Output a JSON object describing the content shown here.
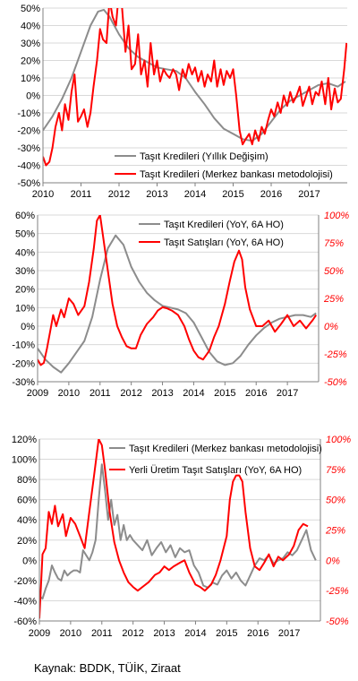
{
  "colors": {
    "gray": "#8c8c8c",
    "red": "#ff0000",
    "grid": "#d9d9d9",
    "axis": "#808080"
  },
  "source_text": "Kaynak: BDDK, TÜİK, Ziraat",
  "chart_data": [
    {
      "type": "line",
      "x_ticks": [
        "2010",
        "2011",
        "2012",
        "2013",
        "2014",
        "2015",
        "2016",
        "2017"
      ],
      "xlim": [
        2010,
        2018
      ],
      "ylim": [
        -50,
        50
      ],
      "y_ticks": [
        "50%",
        "40%",
        "30%",
        "20%",
        "10%",
        "0%",
        "-10%",
        "-20%",
        "-30%",
        "-40%",
        "-50%"
      ],
      "y_tick_values": [
        50,
        40,
        30,
        20,
        10,
        0,
        -10,
        -20,
        -30,
        -40,
        -50
      ],
      "legend_position": "bottom-left",
      "series": [
        {
          "name": "Taşıt Kredileri (Yıllık Değişim)",
          "color": "gray",
          "axis": "left",
          "x": [
            2010.0,
            2010.25,
            2010.5,
            2010.75,
            2011.0,
            2011.25,
            2011.45,
            2011.6,
            2011.75,
            2012.0,
            2012.25,
            2012.5,
            2012.75,
            2013.0,
            2013.25,
            2013.5,
            2013.75,
            2014.0,
            2014.25,
            2014.5,
            2014.75,
            2015.0,
            2015.25,
            2015.5,
            2015.75,
            2016.0,
            2016.25,
            2016.5,
            2016.75,
            2017.0,
            2017.25,
            2017.5,
            2017.75,
            2017.95
          ],
          "y": [
            -20,
            -12,
            -2,
            10,
            25,
            40,
            48,
            49,
            45,
            35,
            27,
            22,
            19,
            16,
            15,
            14,
            10,
            2,
            -5,
            -13,
            -19,
            -22,
            -25,
            -26,
            -22,
            -15,
            -8,
            -3,
            0,
            3,
            6,
            7,
            5,
            8
          ]
        },
        {
          "name": "Taşıt  Kredileri (Merkez bankası metodolojisi)",
          "color": "red",
          "axis": "left",
          "x": [
            2010.0,
            2010.08,
            2010.17,
            2010.25,
            2010.33,
            2010.42,
            2010.5,
            2010.58,
            2010.67,
            2010.75,
            2010.83,
            2010.92,
            2011.0,
            2011.08,
            2011.17,
            2011.25,
            2011.33,
            2011.42,
            2011.5,
            2011.58,
            2011.67,
            2011.75,
            2011.83,
            2011.92,
            2012.0,
            2012.08,
            2012.17,
            2012.25,
            2012.33,
            2012.42,
            2012.5,
            2012.58,
            2012.67,
            2012.75,
            2012.83,
            2012.92,
            2013.0,
            2013.08,
            2013.17,
            2013.25,
            2013.33,
            2013.42,
            2013.5,
            2013.58,
            2013.67,
            2013.75,
            2013.83,
            2013.92,
            2014.0,
            2014.08,
            2014.17,
            2014.25,
            2014.33,
            2014.42,
            2014.5,
            2014.58,
            2014.67,
            2014.75,
            2014.83,
            2014.92,
            2015.0,
            2015.08,
            2015.17,
            2015.25,
            2015.33,
            2015.42,
            2015.5,
            2015.58,
            2015.67,
            2015.75,
            2015.83,
            2015.92,
            2016.0,
            2016.08,
            2016.17,
            2016.25,
            2016.33,
            2016.42,
            2016.5,
            2016.58,
            2016.67,
            2016.75,
            2016.83,
            2016.92,
            2017.0,
            2017.08,
            2017.17,
            2017.25,
            2017.33,
            2017.42,
            2017.5,
            2017.58,
            2017.67,
            2017.75,
            2017.83,
            2017.92,
            2017.98
          ],
          "y": [
            -35,
            -40,
            -38,
            -30,
            -18,
            -10,
            -20,
            -5,
            -14,
            2,
            12,
            -15,
            -12,
            -8,
            -18,
            -10,
            5,
            20,
            38,
            32,
            30,
            55,
            45,
            40,
            60,
            50,
            25,
            40,
            15,
            18,
            35,
            12,
            20,
            5,
            30,
            12,
            20,
            8,
            15,
            12,
            10,
            15,
            12,
            3,
            15,
            10,
            18,
            12,
            16,
            8,
            14,
            5,
            12,
            8,
            20,
            5,
            15,
            6,
            14,
            10,
            15,
            0,
            -20,
            -28,
            -25,
            -22,
            -28,
            -20,
            -26,
            -18,
            -22,
            -14,
            -8,
            -12,
            -4,
            -10,
            0,
            -6,
            2,
            -4,
            0,
            5,
            -6,
            0,
            5,
            -5,
            2,
            0,
            8,
            -5,
            10,
            -8,
            4,
            -4,
            -2,
            15,
            30
          ]
        }
      ]
    },
    {
      "type": "line",
      "x_ticks": [
        "2009",
        "2010",
        "2011",
        "2012",
        "2013",
        "2014",
        "2015",
        "2016",
        "2017"
      ],
      "xlim": [
        2009,
        2018
      ],
      "ylim": [
        -30,
        60
      ],
      "y_ticks": [
        "60%",
        "50%",
        "40%",
        "30%",
        "20%",
        "10%",
        "0%",
        "-10%",
        "-20%",
        "-30%"
      ],
      "y_tick_values": [
        60,
        50,
        40,
        30,
        20,
        10,
        0,
        -10,
        -20,
        -30
      ],
      "y2lim": [
        -50,
        100
      ],
      "y2_ticks": [
        "100%",
        "75%",
        "50%",
        "25%",
        "0%",
        "-25%",
        "-50%"
      ],
      "y2_tick_values": [
        100,
        75,
        50,
        25,
        0,
        -25,
        -50
      ],
      "legend_position": "top-right",
      "series": [
        {
          "name": "Taşıt Kredileri (YoY, 6A HO)",
          "color": "gray",
          "axis": "left",
          "x": [
            2009.0,
            2009.25,
            2009.5,
            2009.75,
            2010.0,
            2010.25,
            2010.5,
            2010.75,
            2011.0,
            2011.25,
            2011.5,
            2011.75,
            2012.0,
            2012.25,
            2012.5,
            2012.75,
            2013.0,
            2013.25,
            2013.5,
            2013.75,
            2014.0,
            2014.25,
            2014.5,
            2014.75,
            2015.0,
            2015.25,
            2015.5,
            2015.75,
            2016.0,
            2016.25,
            2016.5,
            2016.75,
            2017.0,
            2017.25,
            2017.5,
            2017.75,
            2017.92
          ],
          "y": [
            -12,
            -18,
            -22,
            -25,
            -20,
            -14,
            -8,
            5,
            25,
            42,
            49,
            44,
            32,
            24,
            18,
            14,
            11,
            10,
            9,
            7,
            2,
            -6,
            -14,
            -19,
            -21,
            -20,
            -16,
            -10,
            -5,
            -1,
            2,
            4,
            5,
            6,
            6,
            5,
            7
          ]
        },
        {
          "name": "Taşıt Satışları (YoY, 6A HO)",
          "color": "red",
          "axis": "right",
          "x": [
            2009.0,
            2009.1,
            2009.2,
            2009.3,
            2009.4,
            2009.5,
            2009.6,
            2009.75,
            2009.85,
            2010.0,
            2010.15,
            2010.3,
            2010.5,
            2010.65,
            2010.8,
            2010.9,
            2011.0,
            2011.1,
            2011.25,
            2011.4,
            2011.55,
            2011.7,
            2011.85,
            2012.0,
            2012.15,
            2012.3,
            2012.5,
            2012.7,
            2012.85,
            2013.0,
            2013.15,
            2013.3,
            2013.5,
            2013.7,
            2013.85,
            2014.0,
            2014.15,
            2014.3,
            2014.5,
            2014.65,
            2014.8,
            2015.0,
            2015.15,
            2015.3,
            2015.45,
            2015.55,
            2015.65,
            2015.8,
            2016.0,
            2016.2,
            2016.4,
            2016.6,
            2016.8,
            2017.0,
            2017.2,
            2017.4,
            2017.6,
            2017.8,
            2017.92
          ],
          "y": [
            -30,
            -35,
            -33,
            -20,
            -5,
            10,
            0,
            15,
            8,
            25,
            20,
            10,
            18,
            40,
            70,
            95,
            100,
            80,
            50,
            20,
            0,
            -10,
            -18,
            -20,
            -20,
            -8,
            2,
            8,
            14,
            17,
            16,
            14,
            10,
            0,
            -12,
            -22,
            -28,
            -30,
            -22,
            -10,
            0,
            20,
            40,
            58,
            68,
            60,
            35,
            15,
            0,
            0,
            5,
            -5,
            2,
            10,
            0,
            5,
            -2,
            5,
            10
          ]
        }
      ]
    },
    {
      "type": "line",
      "x_ticks": [
        "2009",
        "2010",
        "2011",
        "2012",
        "2013",
        "2014",
        "2015",
        "2016",
        "2017"
      ],
      "xlim": [
        2009,
        2018
      ],
      "ylim": [
        -60,
        120
      ],
      "y_ticks": [
        "120%",
        "100%",
        "80%",
        "60%",
        "40%",
        "20%",
        "0%",
        "-20%",
        "-40%",
        "-60%"
      ],
      "y_tick_values": [
        120,
        100,
        80,
        60,
        40,
        20,
        0,
        -20,
        -40,
        -60
      ],
      "y2lim": [
        -50,
        100
      ],
      "y2_ticks": [
        "100%",
        "75%",
        "50%",
        "25%",
        "0%",
        "-25%",
        "-50%"
      ],
      "y2_tick_values": [
        100,
        75,
        50,
        25,
        0,
        -25,
        -50
      ],
      "legend_position": "top-right",
      "series": [
        {
          "name": "Taşıt Kredileri (Merkez bankası metodolojisi)",
          "color": "gray",
          "axis": "left",
          "x": [
            2009.0,
            2009.1,
            2009.2,
            2009.3,
            2009.4,
            2009.5,
            2009.6,
            2009.7,
            2009.8,
            2009.9,
            2010.0,
            2010.1,
            2010.2,
            2010.3,
            2010.4,
            2010.5,
            2010.6,
            2010.7,
            2010.8,
            2010.9,
            2011.0,
            2011.1,
            2011.2,
            2011.3,
            2011.4,
            2011.5,
            2011.6,
            2011.7,
            2011.8,
            2011.9,
            2012.0,
            2012.15,
            2012.3,
            2012.45,
            2012.6,
            2012.75,
            2012.9,
            2013.05,
            2013.2,
            2013.35,
            2013.5,
            2013.65,
            2013.8,
            2013.95,
            2014.1,
            2014.25,
            2014.4,
            2014.55,
            2014.7,
            2014.85,
            2015.0,
            2015.15,
            2015.3,
            2015.45,
            2015.6,
            2015.75,
            2015.9,
            2016.05,
            2016.2,
            2016.35,
            2016.5,
            2016.65,
            2016.8,
            2016.95,
            2017.1,
            2017.25,
            2017.4,
            2017.55,
            2017.7,
            2017.85
          ],
          "y": [
            -35,
            -38,
            -28,
            -20,
            -5,
            -12,
            -18,
            -20,
            -10,
            -15,
            -12,
            -10,
            -10,
            -12,
            10,
            5,
            0,
            8,
            20,
            60,
            95,
            70,
            40,
            60,
            35,
            45,
            20,
            35,
            20,
            25,
            20,
            15,
            10,
            20,
            5,
            12,
            18,
            8,
            15,
            3,
            12,
            8,
            10,
            -5,
            -12,
            -25,
            -27,
            -22,
            -24,
            -15,
            -10,
            -18,
            -12,
            -20,
            -25,
            -15,
            -5,
            2,
            0,
            5,
            -3,
            0,
            2,
            8,
            5,
            10,
            20,
            30,
            10,
            0
          ]
        },
        {
          "name": "Yerli Üretim Taşıt Satışları (YoY, 6A HO)",
          "color": "red",
          "axis": "right",
          "x": [
            2009.0,
            2009.1,
            2009.2,
            2009.3,
            2009.4,
            2009.5,
            2009.6,
            2009.75,
            2009.85,
            2010.0,
            2010.15,
            2010.3,
            2010.45,
            2010.6,
            2010.75,
            2010.9,
            2011.0,
            2011.1,
            2011.25,
            2011.4,
            2011.55,
            2011.7,
            2011.85,
            2012.0,
            2012.15,
            2012.3,
            2012.5,
            2012.7,
            2012.85,
            2013.0,
            2013.15,
            2013.3,
            2013.5,
            2013.65,
            2013.8,
            2014.0,
            2014.15,
            2014.3,
            2014.5,
            2014.65,
            2014.8,
            2015.0,
            2015.1,
            2015.2,
            2015.3,
            2015.4,
            2015.5,
            2015.6,
            2015.75,
            2015.9,
            2016.05,
            2016.2,
            2016.35,
            2016.5,
            2016.65,
            2016.8,
            2017.0,
            2017.15,
            2017.3,
            2017.45,
            2017.6
          ],
          "y": [
            -48,
            5,
            10,
            40,
            30,
            45,
            28,
            38,
            20,
            35,
            30,
            20,
            10,
            40,
            70,
            100,
            95,
            75,
            40,
            15,
            0,
            -10,
            -18,
            -22,
            -25,
            -22,
            -18,
            -12,
            -10,
            -5,
            -8,
            -5,
            -2,
            0,
            -10,
            -20,
            -22,
            -25,
            -20,
            -12,
            0,
            20,
            50,
            65,
            70,
            70,
            65,
            40,
            10,
            -5,
            -8,
            -2,
            5,
            -5,
            3,
            0,
            5,
            12,
            25,
            30,
            28
          ]
        }
      ]
    }
  ]
}
